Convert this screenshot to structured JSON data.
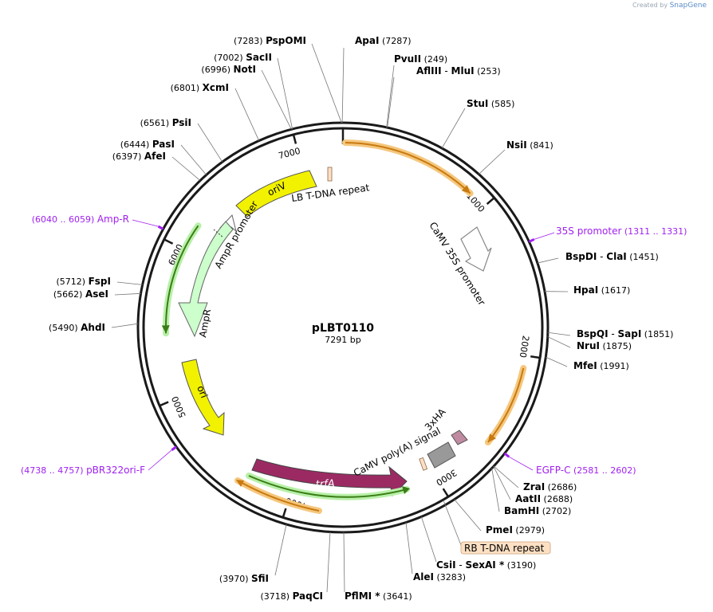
{
  "credit": {
    "prefix": "Created by",
    "brand": "SnapGene"
  },
  "plasmid": {
    "name": "pLBT0110",
    "length_label": "7291 bp",
    "length": 7291
  },
  "ticks": [
    "1000",
    "2000",
    "3000",
    "4000",
    "5000",
    "6000",
    "7000"
  ],
  "sites": [
    {
      "name": "ApaI",
      "pos": "(7287)",
      "bp": 7287
    },
    {
      "name": "PvuII",
      "pos": "(249)",
      "bp": 249
    },
    {
      "name": "AflIII",
      "extra": "MluI",
      "pos": "(253)",
      "bp": 253
    },
    {
      "name": "StuI",
      "pos": "(585)",
      "bp": 585
    },
    {
      "name": "NsiI",
      "pos": "(841)",
      "bp": 841
    },
    {
      "name": "BspDI",
      "extra": "ClaI",
      "pos": "(1451)",
      "bp": 1451
    },
    {
      "name": "HpaI",
      "pos": "(1617)",
      "bp": 1617
    },
    {
      "name": "BspQI",
      "extra": "SapI",
      "pos": "(1851)",
      "bp": 1851
    },
    {
      "name": "NruI",
      "pos": "(1875)",
      "bp": 1875
    },
    {
      "name": "MfeI",
      "pos": "(1991)",
      "bp": 1991
    },
    {
      "name": "ZraI",
      "pos": "(2686)",
      "bp": 2686
    },
    {
      "name": "AatII",
      "pos": "(2688)",
      "bp": 2688
    },
    {
      "name": "BamHI",
      "pos": "(2702)",
      "bp": 2702
    },
    {
      "name": "PmeI",
      "pos": "(2979)",
      "bp": 2979
    },
    {
      "name": "CsiI",
      "extra": "SexAI *",
      "pos": "(3190)",
      "bp": 3190
    },
    {
      "name": "AleI",
      "pos": "(3283)",
      "bp": 3283
    },
    {
      "name": "PflMI *",
      "pos": "(3641)",
      "bp": 3641
    },
    {
      "name": "PaqCI",
      "pos": "(3718)",
      "bp": 3718
    },
    {
      "name": "SfiI",
      "pos": "(3970)",
      "bp": 3970
    },
    {
      "name": "AhdI",
      "pos": "(5490)",
      "bp": 5490
    },
    {
      "name": "AseI",
      "pos": "(5662)",
      "bp": 5662
    },
    {
      "name": "FspI",
      "pos": "(5712)",
      "bp": 5712
    },
    {
      "name": "AfeI",
      "pos": "(6397)",
      "bp": 6397
    },
    {
      "name": "PasI",
      "pos": "(6444)",
      "bp": 6444
    },
    {
      "name": "PsiI",
      "pos": "(6561)",
      "bp": 6561
    },
    {
      "name": "XcmI",
      "pos": "(6801)",
      "bp": 6801
    },
    {
      "name": "NotI",
      "pos": "(6996)",
      "bp": 6996
    },
    {
      "name": "SacII",
      "pos": "(7002)",
      "bp": 7002
    },
    {
      "name": "PspOMI",
      "pos": "(7283)",
      "bp": 7283
    }
  ],
  "primers": [
    {
      "name": "35S promoter",
      "range": "(1311 .. 1331)",
      "bp": 1321
    },
    {
      "name": "EGFP-C",
      "range": "(2581 .. 2602)",
      "bp": 2591
    },
    {
      "name": "pBR322ori-F",
      "range": "(4738 .. 4757)",
      "bp": 4747
    },
    {
      "name": "Amp-R",
      "range": "(6040 .. 6059)",
      "bp": 6050
    }
  ],
  "features": {
    "camv35s": "CaMV 35S promoter",
    "lb": "LB T-DNA repeat",
    "oriv": "oriV",
    "ampr_promoter": "AmpR promoter",
    "ampr": "AmpR",
    "ori": "ori",
    "trfa": "trfA",
    "polya": "CaMV poly(A) signal",
    "hax3": "3xHA",
    "rb": "RB T-DNA repeat"
  },
  "colors": {
    "backbone": "#1a1a1a",
    "primer": "#a020f0",
    "orange_highlight": "#f5c77e",
    "orange_arrow": "#c87a10",
    "green_arrow": "#3a7d16",
    "oriv_fill": "#f2f200",
    "ampr_fill": "#ccffcc",
    "trfa_fill": "#9b2a63",
    "polya_fill": "#999999",
    "hax3_fill": "#c08aa0",
    "rb_box": "#fde0c4"
  }
}
